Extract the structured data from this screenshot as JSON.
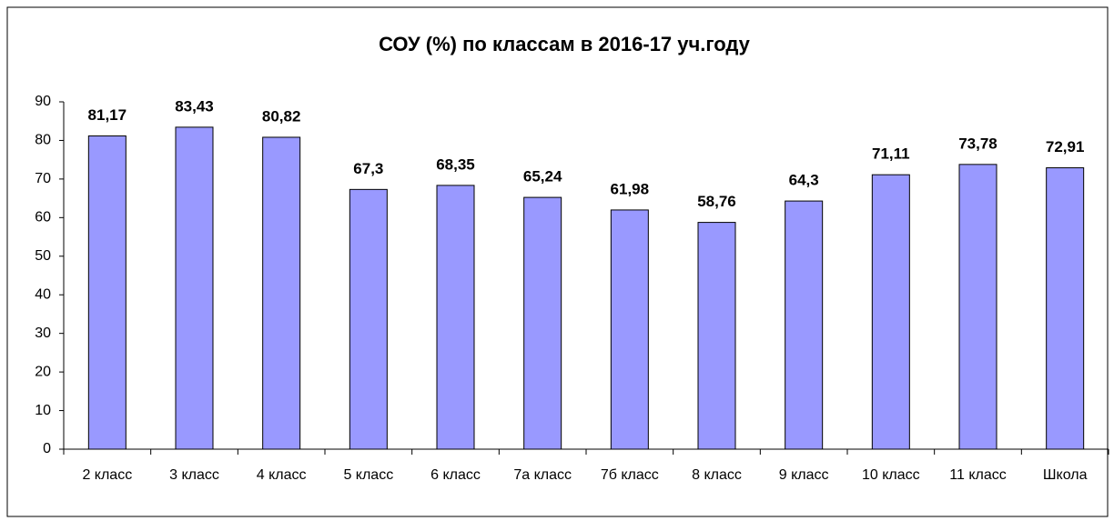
{
  "chart_data": {
    "type": "bar",
    "title": "СОУ (%) по классам в 2016-17 уч.году",
    "categories": [
      "2 класс",
      "3 класс",
      "4 класс",
      "5 класс",
      "6 класс",
      "7а класс",
      "7б класс",
      "8 класс",
      "9 класс",
      "10 класс",
      "11 класс",
      "Школа"
    ],
    "values": [
      81.17,
      83.43,
      80.82,
      67.3,
      68.35,
      65.24,
      61.98,
      58.76,
      64.3,
      71.11,
      73.78,
      72.91
    ],
    "value_labels": [
      "81,17",
      "83,43",
      "80,82",
      "67,3",
      "68,35",
      "65,24",
      "61,98",
      "58,76",
      "64,3",
      "71,11",
      "73,78",
      "72,91"
    ],
    "color": "#9999ff",
    "ylim": [
      0,
      90
    ],
    "yticks": [
      0,
      10,
      20,
      30,
      40,
      50,
      60,
      70,
      80,
      90
    ],
    "grid": false
  }
}
